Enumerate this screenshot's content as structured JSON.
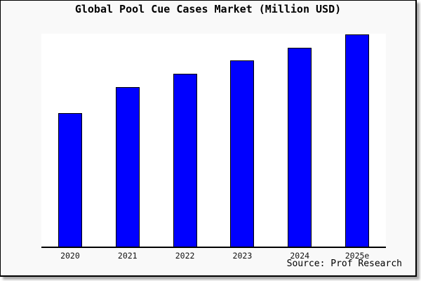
{
  "page": {
    "background_color": "#f9f9f9",
    "frame_border_color": "#000000",
    "shadow_color": "#aaaaaa"
  },
  "chart": {
    "title": "Global Pool Cue Cases Market (Million USD)",
    "source": "Source: Prof Research",
    "bar_color": "#0000ff",
    "bar_border_color": "#000000",
    "plot_background": "#ffffff"
  },
  "chart_data": {
    "type": "bar",
    "title": "Global Pool Cue Cases Market (Million USD)",
    "categories": [
      "2020",
      "2021",
      "2022",
      "2023",
      "2024",
      "2025e"
    ],
    "values": [
      62.9,
      75.2,
      81.5,
      87.7,
      93.7,
      100
    ],
    "value_note": "No y-axis or gridlines shown; values are relative bar heights normalized to 2025e = 100",
    "xlabel": "",
    "ylabel": "",
    "ylim": [
      0,
      100
    ],
    "grid": false,
    "legend": false,
    "source": "Source: Prof Research"
  }
}
